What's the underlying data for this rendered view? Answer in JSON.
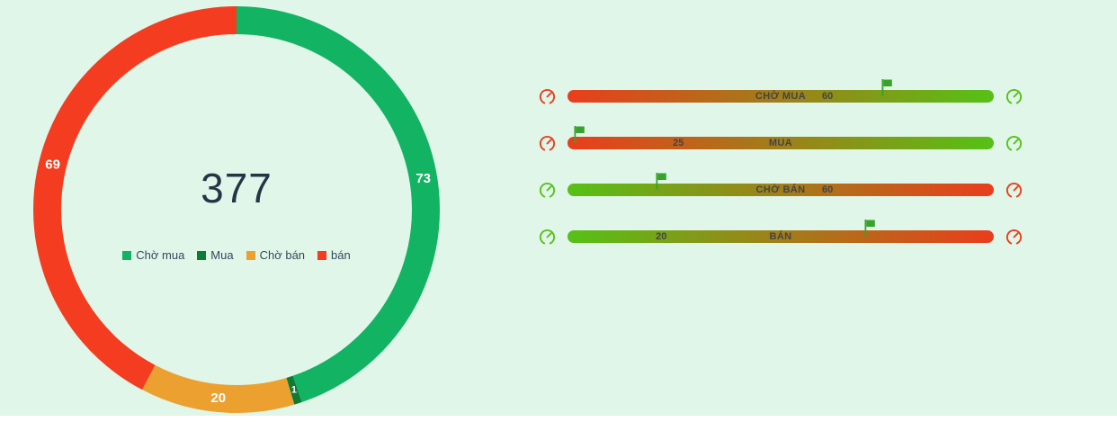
{
  "colors": {
    "background": "#e0f6e9",
    "title_text": "#263445",
    "legend_text": "#35495e",
    "bar_text": "#444444",
    "flag": "#38a32a",
    "bottom_strip": "#ffffff",
    "donut_label_text": "#ffffff",
    "gauge_red": "#ea3d1c",
    "gauge_green": "#56c116"
  },
  "donut": {
    "center_value": "377",
    "legend": [
      {
        "label": "Chờ mua",
        "color": "#12b362"
      },
      {
        "label": "Mua",
        "color": "#0e7a33"
      },
      {
        "label": "Chờ bán",
        "color": "#eca02f"
      },
      {
        "label": "bán",
        "color": "#f43d20"
      }
    ]
  },
  "chart_data": [
    {
      "type": "pie",
      "subtype": "donut",
      "title": "",
      "center_label": 377,
      "start_angle_deg": 0,
      "direction": "clockwise",
      "data_labels": "values shown in white inside the ring",
      "segments": [
        {
          "label": "Chờ mua",
          "value": 73,
          "color": "#12b362"
        },
        {
          "label": "Mua",
          "value": 1,
          "color": "#0e7a33"
        },
        {
          "label": "Chờ bán",
          "value": 20,
          "color": "#eca02f"
        },
        {
          "label": "bán",
          "value": 69,
          "color": "#f43d20"
        }
      ]
    },
    {
      "type": "bar",
      "subtype": "linear-gradient-gauges",
      "title": "",
      "rows": [
        {
          "label": "CHỜ MUA",
          "value": 60,
          "value_pos_pct": 61,
          "flag_pos_pct": 74,
          "gradient": [
            "#ea3d1c",
            "#56c116"
          ]
        },
        {
          "label": "MUA",
          "value": 25,
          "value_pos_pct": 26,
          "flag_pos_pct": 2,
          "gradient": [
            "#ea3d1c",
            "#56c116"
          ]
        },
        {
          "label": "CHỜ BÁN",
          "value": 60,
          "value_pos_pct": 61,
          "flag_pos_pct": 21,
          "gradient": [
            "#56c116",
            "#ea3d1c"
          ]
        },
        {
          "label": "BÁN",
          "value": 20,
          "value_pos_pct": 22,
          "flag_pos_pct": 70,
          "gradient": [
            "#56c116",
            "#ea3d1c"
          ]
        }
      ]
    }
  ]
}
